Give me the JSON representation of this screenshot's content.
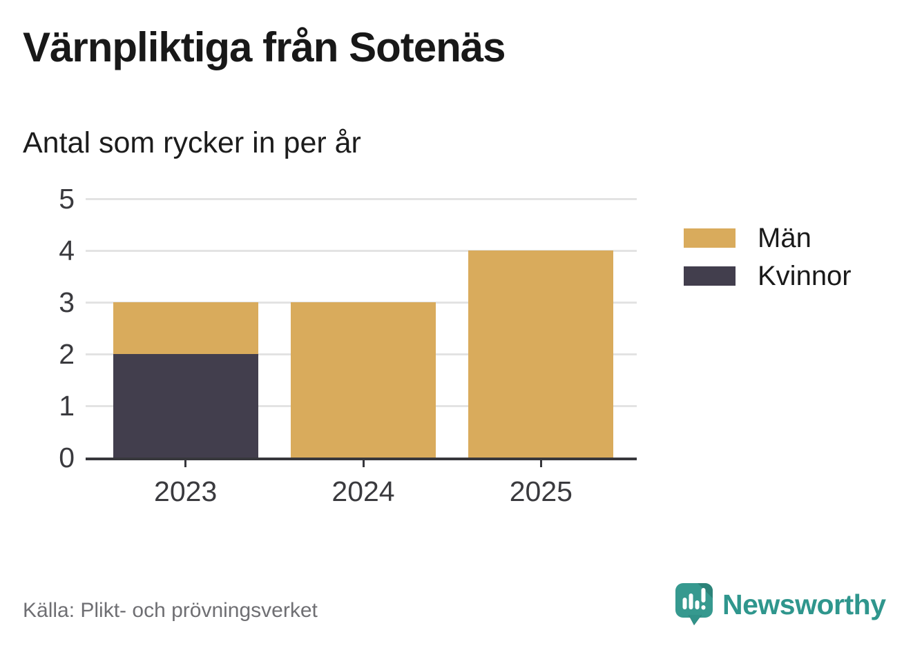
{
  "chart_data": {
    "type": "bar",
    "stacked": true,
    "title": "Värnpliktiga från Sotenäs",
    "subtitle": "Antal som rycker in per år",
    "categories": [
      "2023",
      "2024",
      "2025"
    ],
    "series": [
      {
        "name": "Kvinnor",
        "color": "#423e4d",
        "values": [
          2,
          0,
          0
        ]
      },
      {
        "name": "Män",
        "color": "#d9ab5c",
        "values": [
          1,
          3,
          4
        ]
      }
    ],
    "totals": [
      3,
      3,
      4
    ],
    "ylim": [
      0,
      5
    ],
    "yticks": [
      0,
      1,
      2,
      3,
      4,
      5
    ],
    "grid": true,
    "legend_position": "right",
    "legend": [
      {
        "label": "Män",
        "color": "#d9ab5c"
      },
      {
        "label": "Kvinnor",
        "color": "#423e4d"
      }
    ],
    "source": "Källa: Plikt- och prövningsverket"
  },
  "brand": {
    "name": "Newsworthy"
  },
  "colors": {
    "men": "#d9ab5c",
    "women": "#423e4d",
    "axis": "#37373c",
    "grid": "#e3e3e3",
    "title_text": "#181818",
    "axis_text": "#3a3a3e",
    "muted_text": "#6f6f73",
    "brand_teal": "#2f968d",
    "brand_teal_dark": "#2c8379",
    "background": "#ffffff"
  }
}
